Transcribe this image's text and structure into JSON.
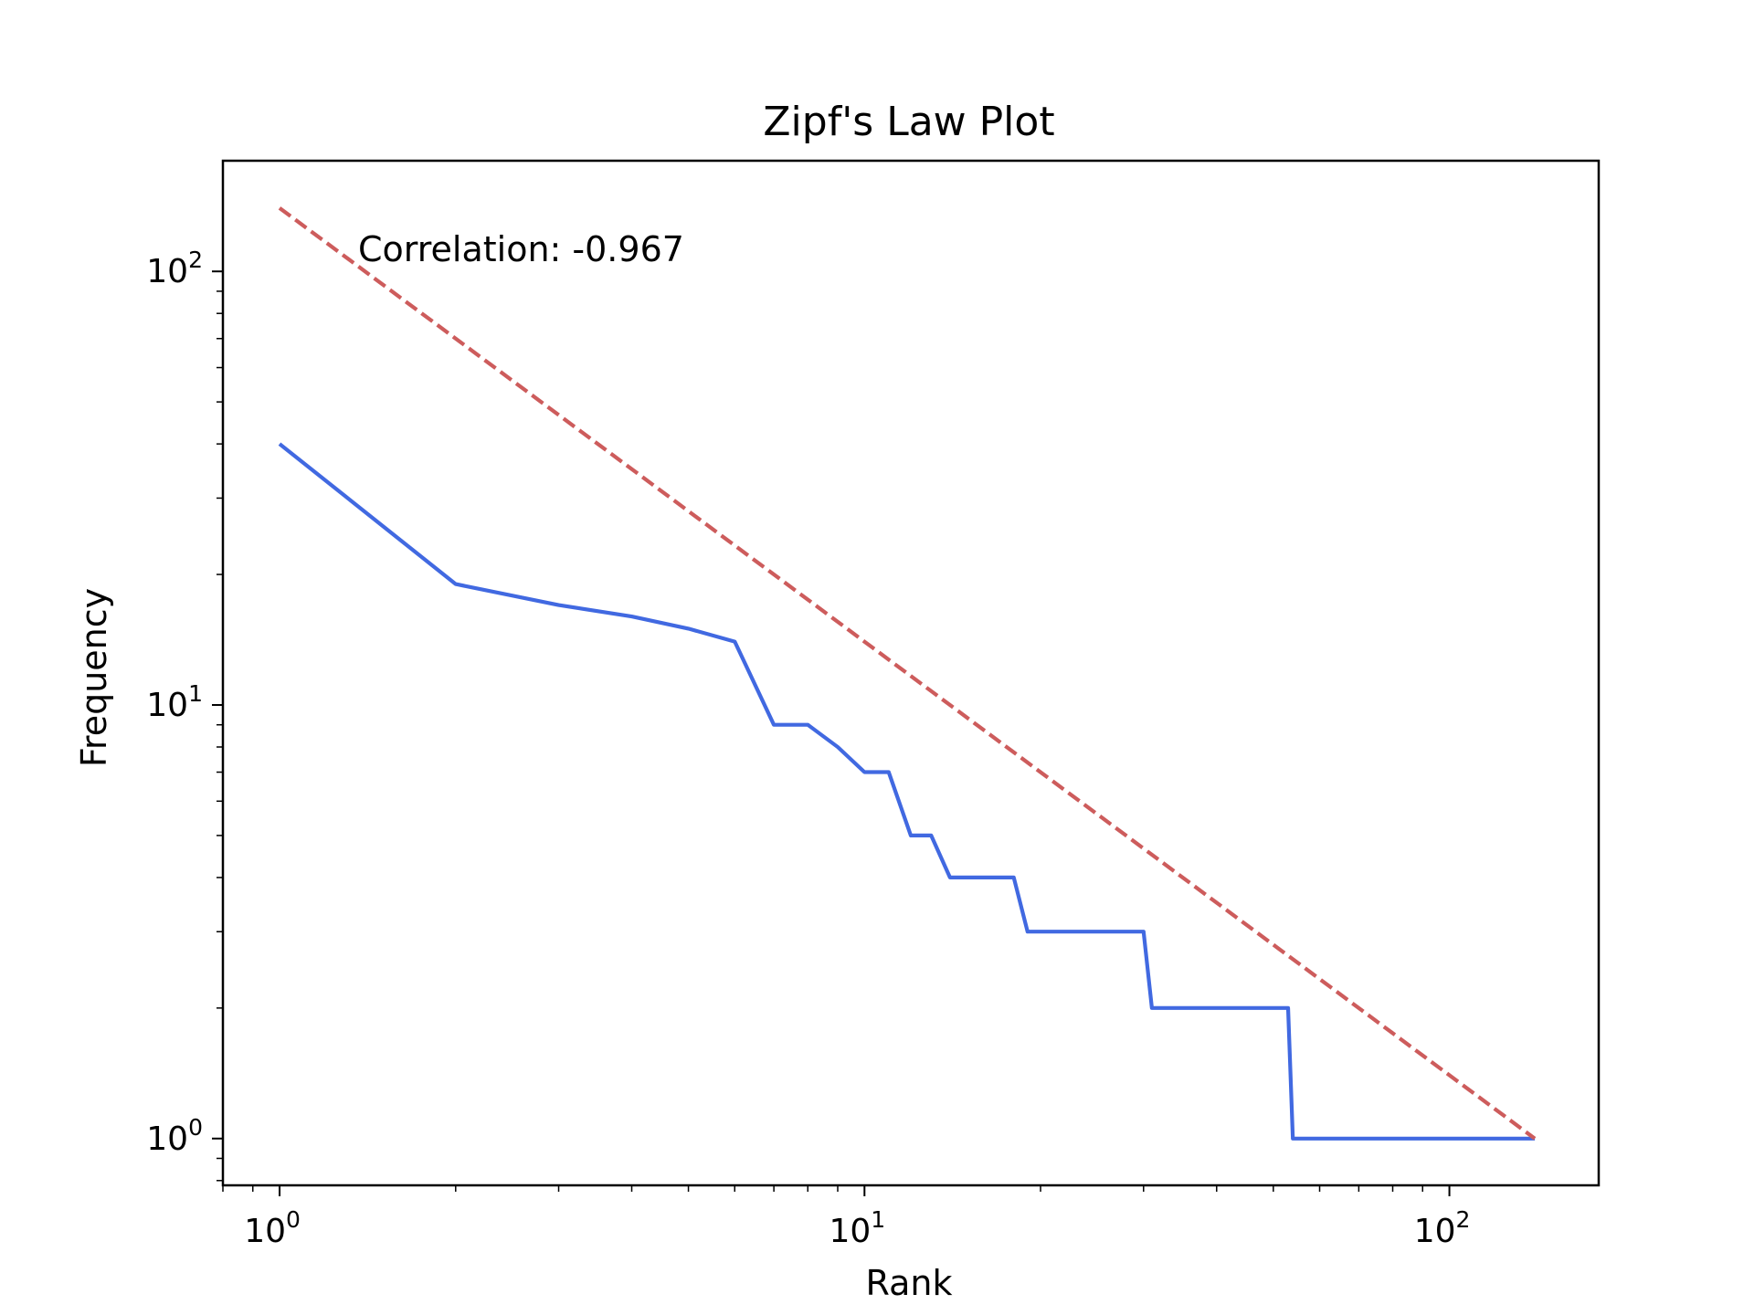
{
  "chart_data": {
    "type": "line",
    "title": "Zipf's Law Plot",
    "xlabel": "Rank",
    "ylabel": "Frequency",
    "xscale": "log",
    "yscale": "log",
    "xlim": [
      0.8,
      180
    ],
    "ylim": [
      0.78,
      180
    ],
    "grid": false,
    "annotation": "Correlation: -0.967",
    "x_ticks": [
      {
        "value": 1,
        "base": "10",
        "exp": "0"
      },
      {
        "value": 10,
        "base": "10",
        "exp": "1"
      },
      {
        "value": 100,
        "base": "10",
        "exp": "2"
      }
    ],
    "y_ticks": [
      {
        "value": 1,
        "base": "10",
        "exp": "0"
      },
      {
        "value": 10,
        "base": "10",
        "exp": "1"
      },
      {
        "value": 100,
        "base": "10",
        "exp": "2"
      }
    ],
    "series": [
      {
        "role": "observed",
        "color": "#4169e1",
        "style": "solid",
        "points": [
          [
            1,
            40
          ],
          [
            2,
            19
          ],
          [
            3,
            17
          ],
          [
            4,
            16
          ],
          [
            5,
            15
          ],
          [
            6,
            14
          ],
          [
            7,
            9
          ],
          [
            8,
            9
          ],
          [
            9,
            8
          ],
          [
            10,
            7
          ],
          [
            11,
            7
          ],
          [
            12,
            5
          ],
          [
            13,
            5
          ],
          [
            14,
            4
          ],
          [
            18,
            4
          ],
          [
            19,
            3
          ],
          [
            30,
            3
          ],
          [
            31,
            2
          ],
          [
            53,
            2
          ],
          [
            54,
            1
          ],
          [
            140,
            1
          ]
        ]
      },
      {
        "role": "reference",
        "color": "#cd5c5c",
        "style": "dashed",
        "points": [
          [
            1,
            140
          ],
          [
            140,
            1
          ]
        ]
      }
    ]
  }
}
